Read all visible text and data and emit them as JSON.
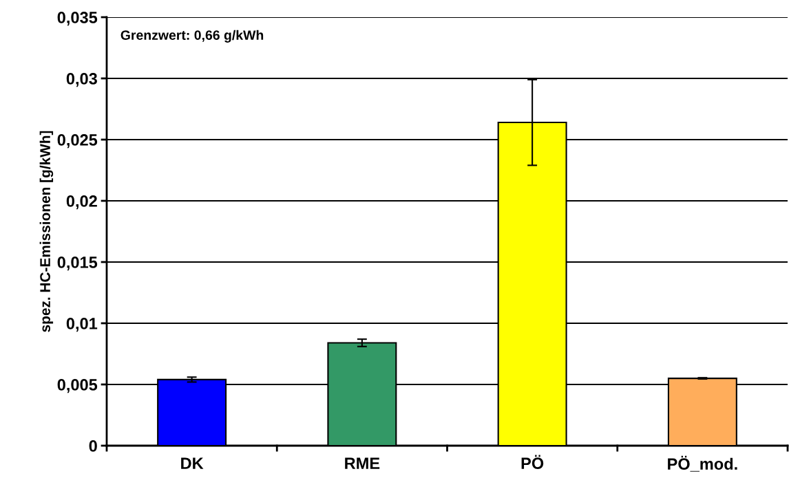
{
  "chart_data": {
    "type": "bar",
    "ylabel": "spez. HC-Emissionen [g/kWh]",
    "categories": [
      "DK",
      "RME",
      "PÖ",
      "PÖ_mod."
    ],
    "values": [
      0.0054,
      0.0084,
      0.0264,
      0.0055
    ],
    "colors": [
      "#0000ff",
      "#339966",
      "#ffff00",
      "#ffad5b"
    ],
    "errors": [
      0.0002,
      0.0003,
      0.0035,
      5e-05
    ],
    "ylim": [
      0,
      0.035
    ],
    "yticks": [
      {
        "value": 0,
        "label": "0"
      },
      {
        "value": 0.005,
        "label": "0,005"
      },
      {
        "value": 0.01,
        "label": "0,01"
      },
      {
        "value": 0.015,
        "label": "0,015"
      },
      {
        "value": 0.02,
        "label": "0,02"
      },
      {
        "value": 0.025,
        "label": "0,025"
      },
      {
        "value": 0.03,
        "label": "0,03"
      },
      {
        "value": 0.035,
        "label": "0,035"
      }
    ],
    "grid": "y",
    "annotations": [
      "Grenzwert: 0,66 g/kWh"
    ]
  }
}
